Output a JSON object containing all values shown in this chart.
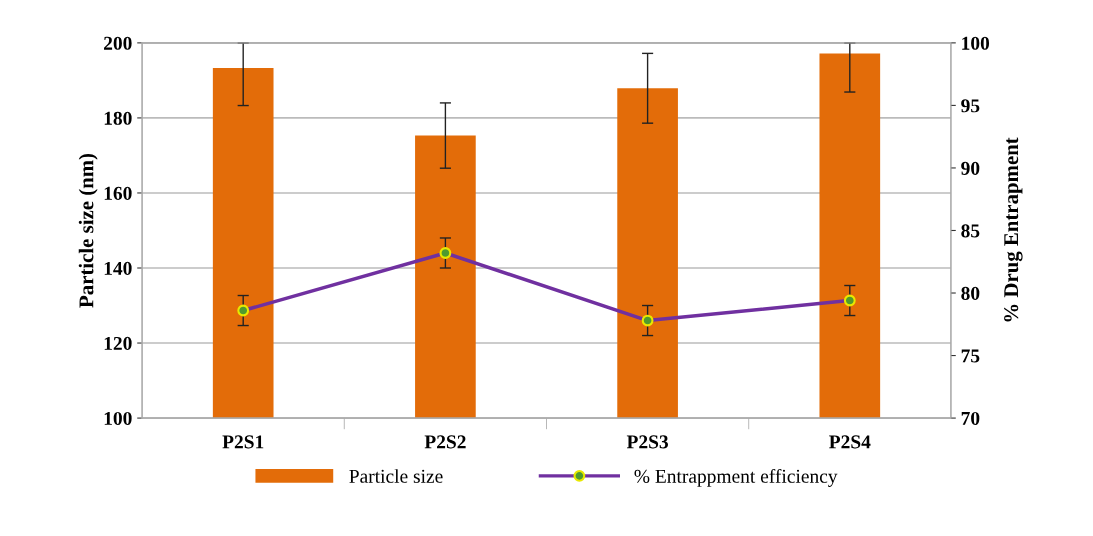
{
  "chart_data": {
    "type": "bar",
    "categories": [
      "P2S1",
      "P2S2",
      "P2S3",
      "P2S4"
    ],
    "ylabel": "Particle size (nm)",
    "y2label": "% Drug Entrapment",
    "ylim": [
      100,
      200
    ],
    "yticks": [
      100,
      120,
      140,
      160,
      180,
      200
    ],
    "y2lim": [
      70,
      100
    ],
    "y2ticks": [
      70,
      75,
      80,
      85,
      90,
      95,
      100
    ],
    "grid": "y",
    "legend": "bottom",
    "series": [
      {
        "name": "Particle size",
        "color": "#e36c09",
        "values": [
          193.3,
          175.3,
          187.9,
          197.2
        ],
        "errors": [
          [
            183.3,
            200
          ],
          8.7,
          9.3,
          [
            186.9,
            200
          ]
        ]
      },
      {
        "name": "% Entrappment efficiency",
        "type": "line",
        "axis": "y2",
        "color": "#7030a0",
        "marker": "circle",
        "values": [
          78.6,
          83.2,
          77.8,
          79.4
        ],
        "errors": [
          1.2,
          1.2,
          1.2,
          1.2
        ]
      }
    ]
  }
}
